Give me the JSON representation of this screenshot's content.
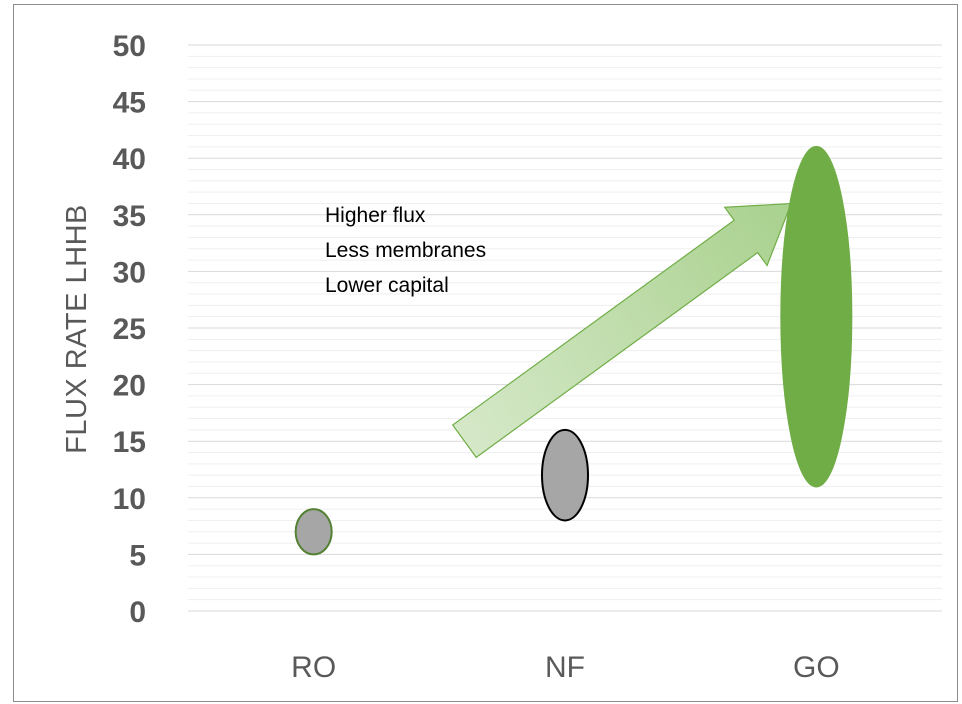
{
  "chart_data": {
    "type": "scatter",
    "title": "",
    "xlabel": "",
    "ylabel": "FLUX RATE LHHB",
    "ylim": [
      0,
      50
    ],
    "y_major_ticks": [
      "0",
      "5",
      "10",
      "15",
      "20",
      "25",
      "30",
      "35",
      "40",
      "45",
      "50"
    ],
    "categories": [
      "RO",
      "NF",
      "GO"
    ],
    "grid": true,
    "series": [
      {
        "category": "RO",
        "y_low": 5,
        "y_high": 9,
        "center": 7,
        "color": "#a6a6a6",
        "border": "#548235"
      },
      {
        "category": "NF",
        "y_low": 8,
        "y_high": 16,
        "center": 12,
        "color": "#a6a6a6",
        "border": "#000000"
      },
      {
        "category": "GO",
        "y_low": 11,
        "y_high": 41,
        "center": 26,
        "color": "#70ad47",
        "border": "#70ad47"
      }
    ],
    "annotation": {
      "lines": [
        "Higher flux",
        "Less membranes",
        "Lower capital"
      ],
      "arrow_from": {
        "category_pos": 1.6,
        "y": 15
      },
      "arrow_to": {
        "category_pos": 2.9,
        "y": 36
      },
      "arrow_color": "#a9d18e"
    }
  }
}
